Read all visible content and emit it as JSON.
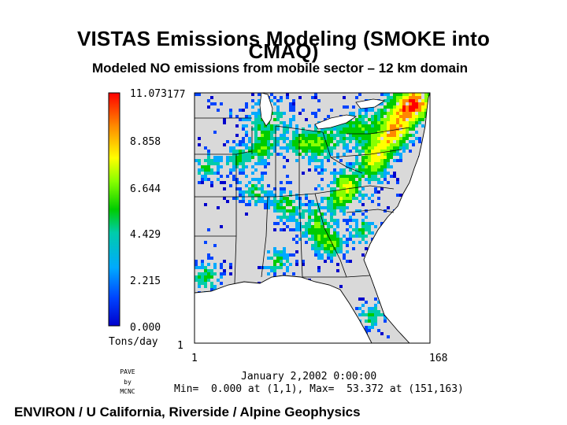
{
  "title_line1": "VISTAS Emissions Modeling (SMOKE into",
  "title_line2": "CMAQ)",
  "subtitle": "Modeled NO emissions from mobile sector – 12 km domain",
  "footer": "ENVIRON / U California, Riverside / Alpine Geophysics",
  "chart_data": {
    "type": "heatmap",
    "colorbar": {
      "labels": [
        "11.073",
        "8.858",
        "6.644",
        "4.429",
        "2.215",
        "0.000"
      ],
      "unit": "Tons/day",
      "range": [
        0.0,
        11.073
      ],
      "colors": [
        "#ff0000",
        "#ff8800",
        "#ffff00",
        "#88ff00",
        "#00cc00",
        "#00ccaa",
        "#00aaff",
        "#0044ff",
        "#0000cc"
      ]
    },
    "axes": {
      "x_start": "1",
      "x_end": "168",
      "y_start": "1",
      "y_end": "177"
    },
    "timestamp": "January 2,2002 0:00:00",
    "stats": "Min=  0.000 at (1,1), Max=  53.372 at (151,163)",
    "credit": [
      "PAVE",
      "by",
      "MCNC"
    ]
  }
}
